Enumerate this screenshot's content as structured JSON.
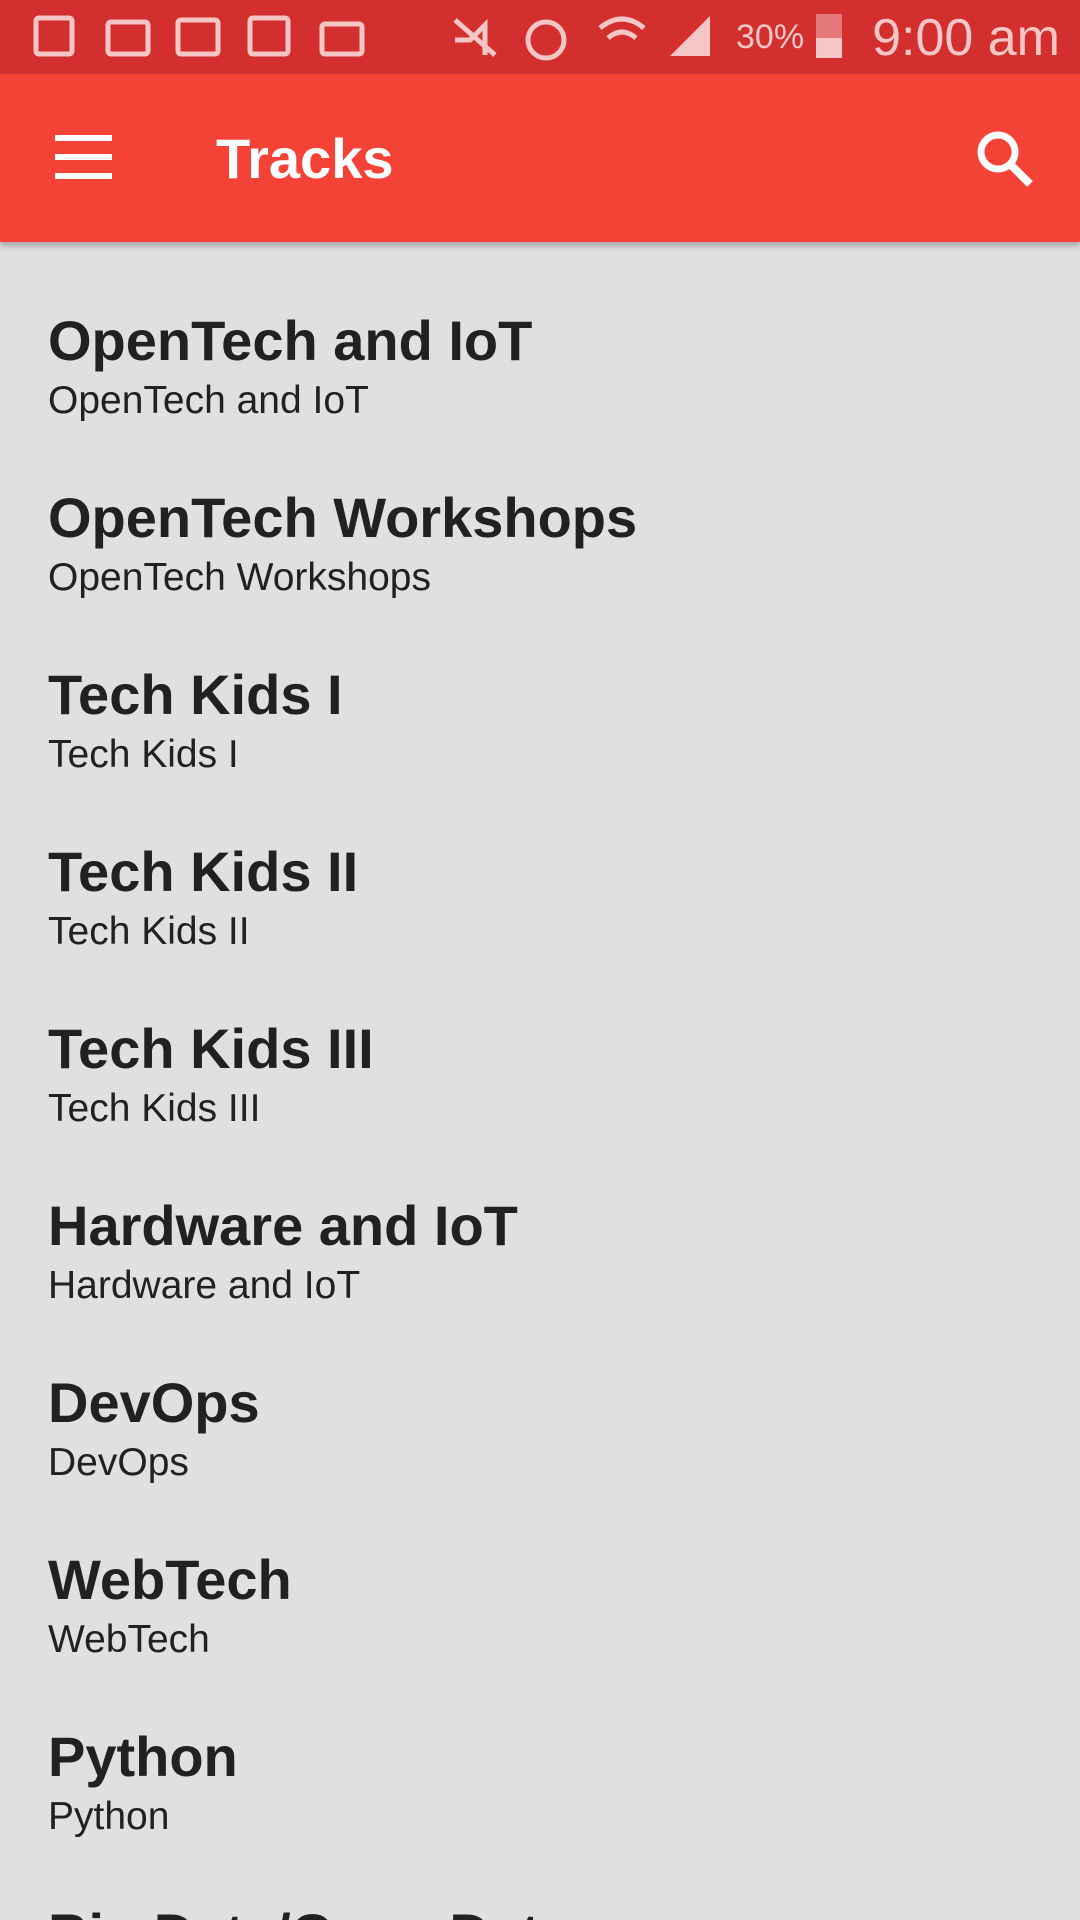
{
  "status_bar": {
    "battery": "30%",
    "time": "9:00 am"
  },
  "app_bar": {
    "title": "Tracks"
  },
  "tracks": [
    {
      "title": "OpenTech and IoT",
      "subtitle": "OpenTech and IoT"
    },
    {
      "title": "OpenTech Workshops",
      "subtitle": "OpenTech Workshops"
    },
    {
      "title": "Tech Kids I",
      "subtitle": "Tech Kids I"
    },
    {
      "title": "Tech Kids II",
      "subtitle": "Tech Kids II"
    },
    {
      "title": "Tech Kids III",
      "subtitle": "Tech Kids III"
    },
    {
      "title": "Hardware and IoT",
      "subtitle": "Hardware and IoT"
    },
    {
      "title": "DevOps",
      "subtitle": "DevOps"
    },
    {
      "title": "WebTech",
      "subtitle": "WebTech"
    },
    {
      "title": "Python",
      "subtitle": "Python"
    },
    {
      "title": "Big Data/Open Data"
    }
  ]
}
